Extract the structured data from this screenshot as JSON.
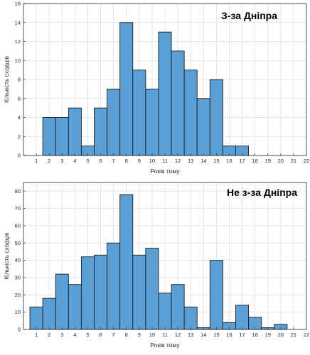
{
  "chart_data": [
    {
      "type": "bar",
      "title": "З-за Дніпра",
      "xlabel": "Років тому",
      "ylabel": "Кількість сходців",
      "xlim": [
        0,
        22
      ],
      "ylim": [
        0,
        16
      ],
      "x_ticks": [
        1,
        2,
        3,
        4,
        5,
        6,
        7,
        8,
        9,
        10,
        11,
        12,
        13,
        14,
        15,
        16,
        17,
        18,
        19,
        20,
        21,
        22
      ],
      "y_ticks": [
        0,
        2,
        4,
        6,
        8,
        10,
        12,
        14,
        16
      ],
      "grid": true,
      "bar_color": "#5aa0d6",
      "edge_color": "#1f1f1f",
      "bins": [
        {
          "x0": 1.5,
          "x1": 2.5,
          "value": 4
        },
        {
          "x0": 2.5,
          "x1": 3.5,
          "value": 4
        },
        {
          "x0": 3.5,
          "x1": 4.5,
          "value": 5
        },
        {
          "x0": 4.5,
          "x1": 5.5,
          "value": 1
        },
        {
          "x0": 5.5,
          "x1": 6.5,
          "value": 5
        },
        {
          "x0": 6.5,
          "x1": 7.5,
          "value": 7
        },
        {
          "x0": 7.5,
          "x1": 8.5,
          "value": 14
        },
        {
          "x0": 8.5,
          "x1": 9.5,
          "value": 9
        },
        {
          "x0": 9.5,
          "x1": 10.5,
          "value": 7
        },
        {
          "x0": 10.5,
          "x1": 11.5,
          "value": 13
        },
        {
          "x0": 11.5,
          "x1": 12.5,
          "value": 11
        },
        {
          "x0": 12.5,
          "x1": 13.5,
          "value": 9
        },
        {
          "x0": 13.5,
          "x1": 14.5,
          "value": 6
        },
        {
          "x0": 14.5,
          "x1": 15.5,
          "value": 8
        },
        {
          "x0": 15.5,
          "x1": 16.5,
          "value": 1
        },
        {
          "x0": 16.5,
          "x1": 17.5,
          "value": 1
        }
      ]
    },
    {
      "type": "bar",
      "title": "Не з-за Дніпра",
      "xlabel": "Років тому",
      "ylabel": "Кількість сходців",
      "xlim": [
        0,
        22
      ],
      "ylim": [
        0,
        85
      ],
      "x_ticks": [
        1,
        2,
        3,
        4,
        5,
        6,
        7,
        8,
        9,
        10,
        11,
        12,
        13,
        14,
        15,
        16,
        17,
        18,
        19,
        20,
        21,
        22
      ],
      "y_ticks": [
        0,
        10,
        20,
        30,
        40,
        50,
        60,
        70,
        80
      ],
      "grid": true,
      "bar_color": "#5aa0d6",
      "edge_color": "#1f1f1f",
      "bins": [
        {
          "x0": 0.5,
          "x1": 1.5,
          "value": 13
        },
        {
          "x0": 1.5,
          "x1": 2.5,
          "value": 18
        },
        {
          "x0": 2.5,
          "x1": 3.5,
          "value": 32
        },
        {
          "x0": 3.5,
          "x1": 4.5,
          "value": 26
        },
        {
          "x0": 4.5,
          "x1": 5.5,
          "value": 42
        },
        {
          "x0": 5.5,
          "x1": 6.5,
          "value": 43
        },
        {
          "x0": 6.5,
          "x1": 7.5,
          "value": 50
        },
        {
          "x0": 7.5,
          "x1": 8.5,
          "value": 78
        },
        {
          "x0": 8.5,
          "x1": 9.5,
          "value": 43
        },
        {
          "x0": 9.5,
          "x1": 10.5,
          "value": 47
        },
        {
          "x0": 10.5,
          "x1": 11.5,
          "value": 21
        },
        {
          "x0": 11.5,
          "x1": 12.5,
          "value": 26
        },
        {
          "x0": 12.5,
          "x1": 13.5,
          "value": 13
        },
        {
          "x0": 13.5,
          "x1": 14.5,
          "value": 1
        },
        {
          "x0": 14.5,
          "x1": 15.5,
          "value": 40
        },
        {
          "x0": 15.5,
          "x1": 16.5,
          "value": 4
        },
        {
          "x0": 16.5,
          "x1": 17.5,
          "value": 14
        },
        {
          "x0": 17.5,
          "x1": 18.5,
          "value": 7
        },
        {
          "x0": 18.5,
          "x1": 19.5,
          "value": 1
        },
        {
          "x0": 19.5,
          "x1": 20.5,
          "value": 3
        }
      ]
    }
  ]
}
